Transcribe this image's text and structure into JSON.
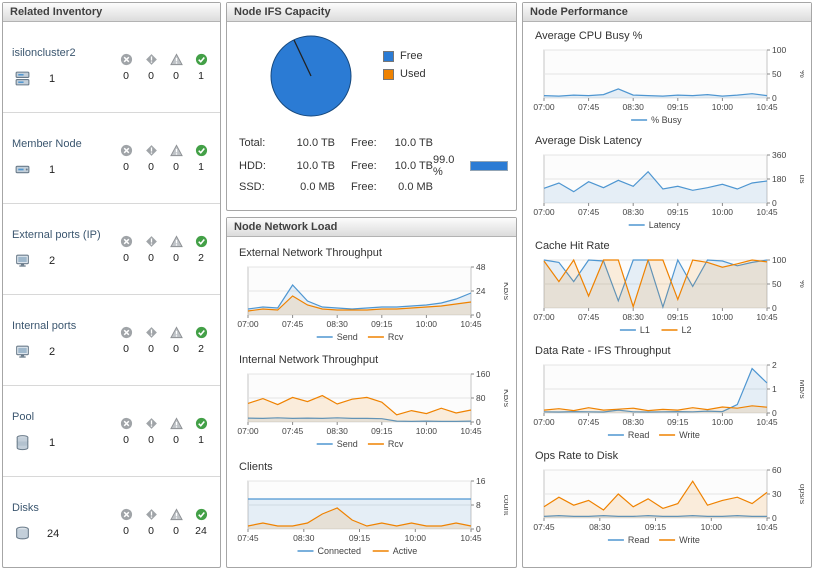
{
  "inventory": {
    "title": "Related Inventory",
    "rows": [
      {
        "label": "isiloncluster2",
        "count": "1",
        "fatal": "0",
        "critical": "0",
        "warning": "0",
        "normal": "1"
      },
      {
        "label": "Member Node",
        "count": "1",
        "fatal": "0",
        "critical": "0",
        "warning": "0",
        "normal": "1"
      },
      {
        "label": "External ports (IP)",
        "count": "2",
        "fatal": "0",
        "critical": "0",
        "warning": "0",
        "normal": "2"
      },
      {
        "label": "Internal ports",
        "count": "2",
        "fatal": "0",
        "critical": "0",
        "warning": "0",
        "normal": "2"
      },
      {
        "label": "Pool",
        "count": "1",
        "fatal": "0",
        "critical": "0",
        "warning": "0",
        "normal": "1"
      },
      {
        "label": "Disks",
        "count": "24",
        "fatal": "0",
        "critical": "0",
        "warning": "0",
        "normal": "24"
      }
    ]
  },
  "capacity": {
    "title": "Node IFS Capacity",
    "legend": [
      {
        "label": "Free",
        "color": "#2b7bd4"
      },
      {
        "label": "Used",
        "color": "#ef8200"
      }
    ],
    "pie": {
      "free_pct": 99.0,
      "used_pct": 1.0,
      "free_color": "#2b7bd4",
      "used_color": "#ef8200"
    },
    "rows": [
      {
        "label": "Total:",
        "value": "10.0 TB",
        "free_label": "Free:",
        "free_value": "10.0 TB"
      },
      {
        "label": "HDD:",
        "value": "10.0 TB",
        "free_label": "Free:",
        "free_value": "10.0 TB",
        "percent": "99.0 %",
        "percent_value": 99
      },
      {
        "label": "SSD:",
        "value": "0.0 MB",
        "free_label": "Free:",
        "free_value": "0.0 MB"
      }
    ]
  },
  "network": {
    "title": "Node Network Load"
  },
  "performance": {
    "title": "Node Performance"
  },
  "chart_data": {
    "ext": {
      "type": "line",
      "title": "External Network Throughput",
      "ylabel": "KB/s",
      "ylim": [
        0,
        48
      ],
      "yticks": [
        0,
        24,
        48
      ],
      "xticklabels": [
        "07:00",
        "07:45",
        "08:30",
        "09:15",
        "10:00",
        "10:45"
      ],
      "series": [
        {
          "name": "Send",
          "color": "#4e96d1",
          "values": [
            6,
            8,
            7,
            30,
            14,
            8,
            7,
            6,
            7,
            8,
            8,
            9,
            10,
            12,
            16,
            22
          ]
        },
        {
          "name": "Rcv",
          "color": "#ef8200",
          "values": [
            4,
            6,
            5,
            19,
            10,
            6,
            5,
            5,
            5,
            6,
            6,
            7,
            8,
            9,
            11,
            13
          ]
        }
      ]
    },
    "int": {
      "type": "line",
      "title": "Internal Network Throughput",
      "ylabel": "KB/s",
      "ylim": [
        0,
        160
      ],
      "yticks": [
        0,
        80,
        160
      ],
      "xticklabels": [
        "07:00",
        "07:45",
        "08:30",
        "09:15",
        "10:00",
        "10:45"
      ],
      "series": [
        {
          "name": "Send",
          "color": "#4e96d1",
          "values": [
            13,
            12,
            14,
            12,
            13,
            12,
            14,
            12,
            12,
            11,
            3,
            2,
            3,
            2,
            2,
            3
          ]
        },
        {
          "name": "Rcv",
          "color": "#ef8200",
          "values": [
            62,
            78,
            58,
            82,
            68,
            88,
            60,
            76,
            82,
            66,
            24,
            38,
            28,
            46,
            30,
            40
          ]
        }
      ]
    },
    "clients": {
      "type": "line",
      "title": "Clients",
      "ylabel": "count",
      "ylim": [
        0,
        16
      ],
      "yticks": [
        0,
        8,
        16
      ],
      "xticklabels": [
        "07:45",
        "08:30",
        "09:15",
        "10:00",
        "10:45"
      ],
      "series": [
        {
          "name": "Connected",
          "color": "#4e96d1",
          "values": [
            10,
            10,
            10,
            10,
            10,
            10,
            10,
            10,
            10,
            10,
            10,
            10,
            10,
            10,
            10,
            10
          ]
        },
        {
          "name": "Active",
          "color": "#ef8200",
          "values": [
            1,
            2,
            1,
            1,
            2,
            5,
            7,
            3,
            1,
            2,
            1,
            2,
            1,
            1,
            2,
            1
          ]
        }
      ]
    },
    "cpu": {
      "type": "line",
      "title": "Average CPU Busy %",
      "ylabel": "%",
      "ylim": [
        0,
        100
      ],
      "yticks": [
        0,
        50,
        100
      ],
      "xticklabels": [
        "07:00",
        "07:45",
        "08:30",
        "09:15",
        "10:00",
        "10:45"
      ],
      "series": [
        {
          "name": "% Busy",
          "color": "#4e96d1",
          "values": [
            5,
            4,
            6,
            5,
            7,
            19,
            6,
            5,
            4,
            6,
            5,
            7,
            4,
            6,
            9,
            5
          ]
        }
      ]
    },
    "latency": {
      "type": "line",
      "title": "Average Disk Latency",
      "ylabel": "us",
      "ylim": [
        0,
        360
      ],
      "yticks": [
        0,
        180,
        360
      ],
      "xticklabels": [
        "07:00",
        "07:45",
        "08:30",
        "09:15",
        "10:00",
        "10:45"
      ],
      "series": [
        {
          "name": "Latency",
          "color": "#4e96d1",
          "values": [
            110,
            150,
            85,
            160,
            115,
            170,
            125,
            235,
            105,
            125,
            95,
            115,
            140,
            105,
            150,
            165
          ]
        }
      ]
    },
    "cache": {
      "type": "line",
      "title": "Cache Hit Rate",
      "ylabel": "%",
      "ylim": [
        0,
        100
      ],
      "yticks": [
        0,
        50,
        100
      ],
      "xticklabels": [
        "07:00",
        "07:45",
        "08:30",
        "09:15",
        "10:00",
        "10:45"
      ],
      "series": [
        {
          "name": "L1",
          "color": "#4e96d1",
          "values": [
            100,
            95,
            55,
            100,
            98,
            15,
            100,
            100,
            2,
            100,
            45,
            100,
            98,
            88,
            95,
            100
          ]
        },
        {
          "name": "L2",
          "color": "#ef8200",
          "values": [
            98,
            55,
            100,
            25,
            100,
            100,
            3,
            100,
            100,
            18,
            100,
            95,
            85,
            92,
            100,
            96
          ]
        }
      ]
    },
    "datarate": {
      "type": "line",
      "title": "Data Rate - IFS Throughput",
      "ylabel": "MB/s",
      "ylim": [
        0,
        2
      ],
      "yticks": [
        0,
        1,
        2
      ],
      "xticklabels": [
        "07:00",
        "07:45",
        "08:30",
        "09:15",
        "10:00",
        "10:45"
      ],
      "series": [
        {
          "name": "Read",
          "color": "#4e96d1",
          "values": [
            0.05,
            0.04,
            0.06,
            0.05,
            0.04,
            0.12,
            0.05,
            0.04,
            0.05,
            0.06,
            0.05,
            0.08,
            0.06,
            0.35,
            1.85,
            1.25
          ]
        },
        {
          "name": "Write",
          "color": "#ef8200",
          "values": [
            0.12,
            0.18,
            0.1,
            0.22,
            0.12,
            0.16,
            0.2,
            0.1,
            0.15,
            0.12,
            0.22,
            0.14,
            0.25,
            0.2,
            0.3,
            0.24
          ]
        }
      ]
    },
    "ops": {
      "type": "line",
      "title": "Ops Rate to Disk",
      "ylabel": "ops/s",
      "ylim": [
        0,
        60
      ],
      "yticks": [
        0,
        30,
        60
      ],
      "xticklabels": [
        "07:45",
        "08:30",
        "09:15",
        "10:00",
        "10:45"
      ],
      "series": [
        {
          "name": "Read",
          "color": "#4e96d1",
          "values": [
            2,
            3,
            2,
            2,
            3,
            2,
            2,
            3,
            2,
            2,
            3,
            2,
            2,
            3,
            2,
            2
          ]
        },
        {
          "name": "Write",
          "color": "#ef8200",
          "values": [
            14,
            26,
            16,
            22,
            10,
            30,
            14,
            24,
            12,
            18,
            46,
            16,
            22,
            26,
            18,
            32
          ]
        }
      ]
    }
  }
}
